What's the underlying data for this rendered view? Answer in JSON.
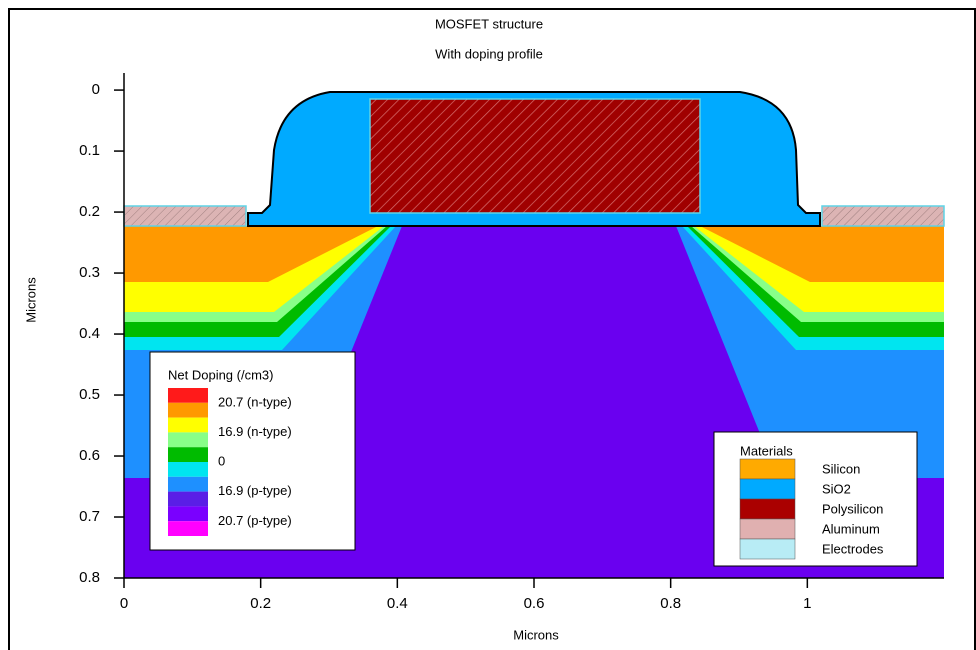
{
  "chart_data": {
    "type": "contour",
    "title": "MOSFET structure",
    "subtitle": "With doping profile",
    "xlabel": "Microns",
    "ylabel": "Microns",
    "xlim": [
      0,
      1.2
    ],
    "ylim": [
      0.8,
      -0.028
    ],
    "xticks": [
      0,
      0.2,
      0.4,
      0.6,
      0.8,
      1
    ],
    "yticks": [
      0,
      0.1,
      0.2,
      0.3,
      0.4,
      0.5,
      0.6,
      0.7,
      0.8
    ],
    "doping_legend": {
      "title": "Net Doping (/cm3)",
      "colors": [
        "#ff1a1a",
        "#ff9900",
        "#ffff00",
        "#88ff88",
        "#00bb00",
        "#00e5f0",
        "#1e90ff",
        "#5a1ee6",
        "#7a00ff",
        "#ff00ff"
      ],
      "labels": [
        "20.7 (n-type)",
        "16.9 (n-type)",
        "0",
        "16.9 (p-type)",
        "20.7 (p-type)"
      ]
    },
    "materials_legend": {
      "title": "Materials",
      "items": [
        {
          "label": "Silicon",
          "color": "#ffaa00"
        },
        {
          "label": "SiO2",
          "color": "#00aaff"
        },
        {
          "label": "Polysilicon",
          "color": "#aa0000"
        },
        {
          "label": "Aluminum",
          "color": "#e0b0b0"
        },
        {
          "label": "Electrodes",
          "color": "#b8ecf5"
        }
      ]
    }
  }
}
